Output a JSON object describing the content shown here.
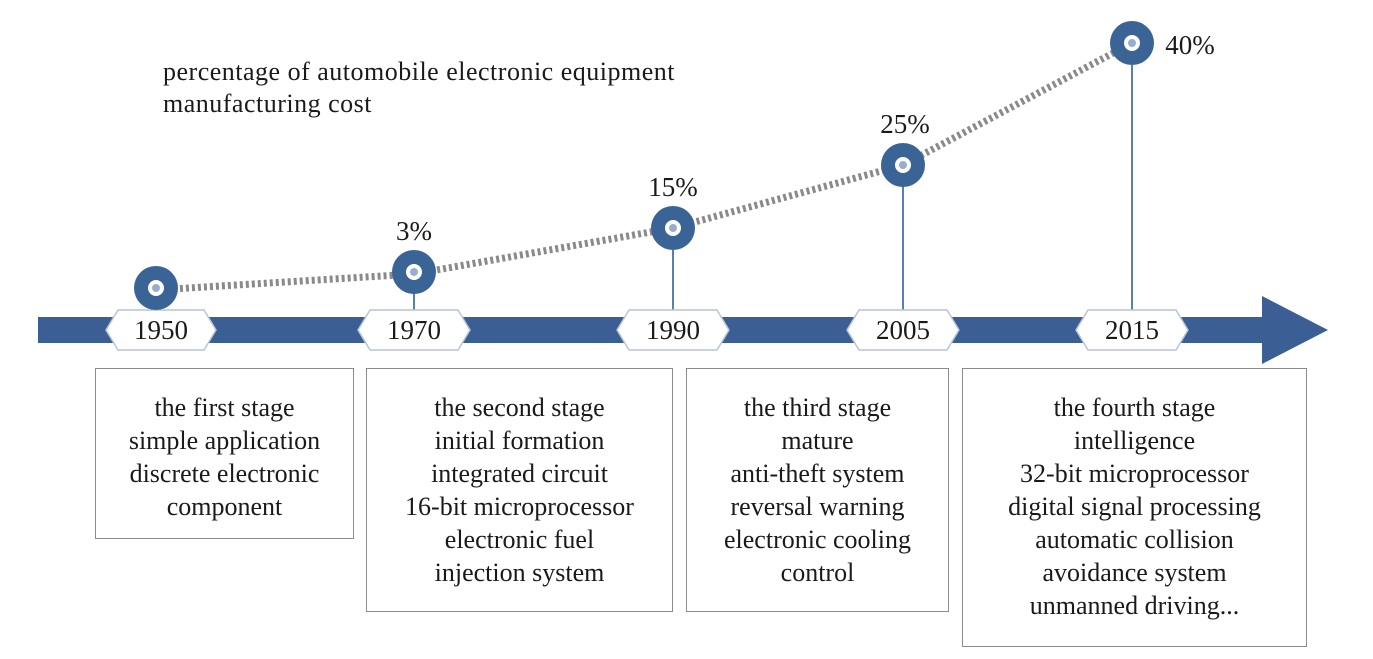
{
  "title_lines": [
    "percentage of automobile electronic equipment",
    "manufacturing cost"
  ],
  "milestones": [
    {
      "year": "1950",
      "percent": ""
    },
    {
      "year": "1970",
      "percent": "3%"
    },
    {
      "year": "1990",
      "percent": "15%"
    },
    {
      "year": "2005",
      "percent": "25%"
    },
    {
      "year": "2015",
      "percent": "40%"
    }
  ],
  "stages": [
    {
      "lines": [
        "the first stage",
        "simple application",
        "discrete electronic",
        "component"
      ]
    },
    {
      "lines": [
        "the second stage",
        "initial formation",
        "integrated circuit",
        "16-bit microprocessor",
        "electronic fuel",
        "injection system"
      ]
    },
    {
      "lines": [
        "the third stage",
        "mature",
        "anti-theft system",
        "reversal warning",
        "electronic cooling",
        "control"
      ]
    },
    {
      "lines": [
        "the fourth stage",
        "intelligence",
        "32-bit microprocessor",
        "digital signal processing",
        "automatic collision",
        "avoidance system",
        "unmanned driving..."
      ]
    }
  ],
  "colors": {
    "axis": "#3b5f94",
    "ring": "#3b6496",
    "dotted": "#8a8a8a",
    "box_border": "#8c8c8c",
    "connector": "#5a7fb5"
  }
}
